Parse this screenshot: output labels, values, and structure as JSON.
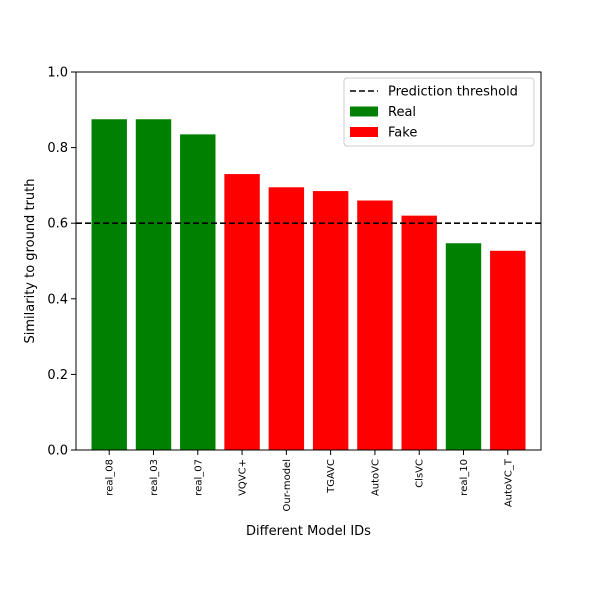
{
  "chart_data": {
    "type": "bar",
    "categories": [
      "real_08",
      "real_03",
      "real_07",
      "VQVC+",
      "Our-model",
      "TGAVC",
      "AutoVC",
      "ClsVC",
      "real_10",
      "AutoVC_T"
    ],
    "values": [
      0.875,
      0.875,
      0.835,
      0.73,
      0.695,
      0.685,
      0.66,
      0.62,
      0.547,
      0.527
    ],
    "classes": [
      "Real",
      "Real",
      "Real",
      "Fake",
      "Fake",
      "Fake",
      "Fake",
      "Fake",
      "Real",
      "Fake"
    ],
    "colors": {
      "Real": "#008000",
      "Fake": "#ff0000",
      "threshold": "#000000"
    },
    "threshold": {
      "value": 0.6,
      "label": "Prediction threshold"
    },
    "legend": {
      "placement": "top-right",
      "entries": [
        {
          "label": "Prediction threshold",
          "kind": "dashed-line"
        },
        {
          "label": "Real",
          "kind": "patch",
          "class": "Real"
        },
        {
          "label": "Fake",
          "kind": "patch",
          "class": "Fake"
        }
      ]
    },
    "xlabel": "Different Model IDs",
    "ylabel": "Similarity to ground truth",
    "ylim": [
      0,
      1
    ],
    "yticks": [
      0.0,
      0.2,
      0.4,
      0.6,
      0.8,
      1.0
    ],
    "ytick_labels": [
      "0.0",
      "0.2",
      "0.4",
      "0.6",
      "0.8",
      "1.0"
    ],
    "grid": false
  }
}
